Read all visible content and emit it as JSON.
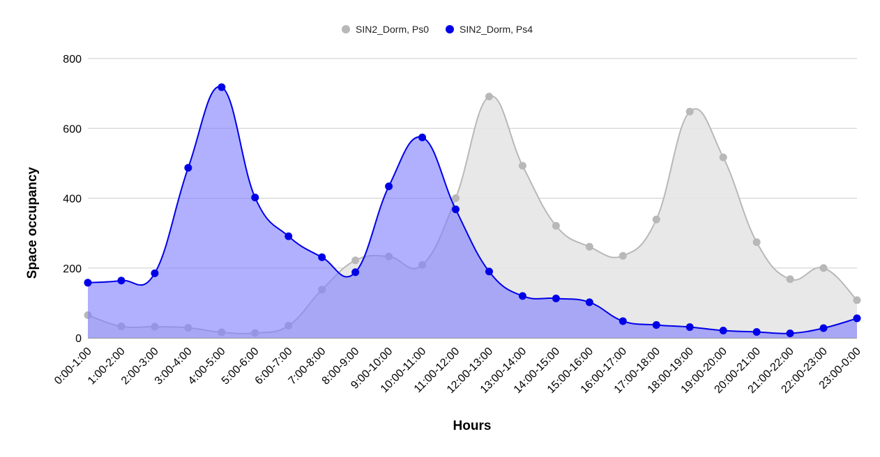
{
  "chart_data": {
    "type": "area",
    "title": "",
    "xlabel": "Hours",
    "ylabel": "Space occupancy",
    "ylim": [
      0,
      800
    ],
    "yticks": [
      0,
      200,
      400,
      600,
      800
    ],
    "grid": true,
    "legend_position": "top-center",
    "categories": [
      "0:00-1:00",
      "1:00-2:00",
      "2:00-3:00",
      "3:00-4:00",
      "4:00-5:00",
      "5:00-6:00",
      "6:00-7:00",
      "7:00-8:00",
      "8:00-9:00",
      "9:00-10:00",
      "10:00-11:00",
      "11:00-12:00",
      "12:00-13:00",
      "13:00-14:00",
      "14:00-15:00",
      "15:00-16:00",
      "16:00-17:00",
      "17:00-18:00",
      "18:00-19:00",
      "19:00-20:00",
      "20:00-21:00",
      "21:00-22:00",
      "22:00-23:00",
      "23:00-0:00"
    ],
    "series": [
      {
        "name": "SIN2_Dorm, Ps0",
        "color": "#b8b8b8",
        "fill": "#e6e6e6",
        "values": [
          65,
          33,
          32,
          29,
          16,
          14,
          35,
          138,
          222,
          233,
          209,
          400,
          691,
          493,
          321,
          261,
          235,
          339,
          648,
          517,
          274,
          168,
          200,
          108
        ]
      },
      {
        "name": "SIN2_Dorm, Ps4",
        "color": "#0000e6",
        "fill": "#8080ff",
        "values": [
          158,
          164,
          185,
          487,
          718,
          402,
          291,
          231,
          188,
          434,
          574,
          368,
          190,
          120,
          113,
          102,
          48,
          37,
          31,
          21,
          17,
          13,
          28,
          56
        ]
      }
    ]
  }
}
